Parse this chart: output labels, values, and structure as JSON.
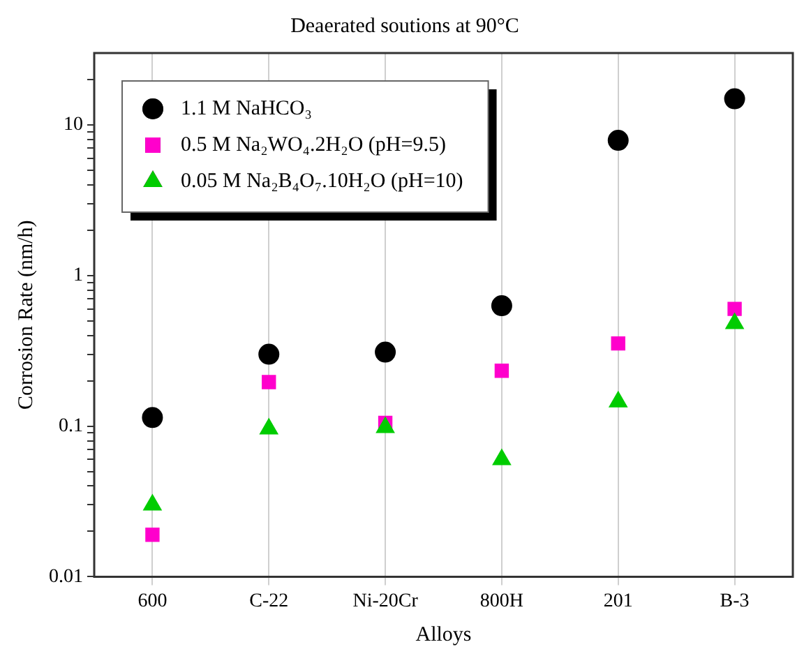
{
  "chart_data": {
    "type": "scatter",
    "title": "Deaerated soutions at 90°C",
    "xlabel": "Alloys",
    "ylabel": "Corrosion Rate (nm/h)",
    "categories": [
      "600",
      "C-22",
      "Ni-20Cr",
      "800H",
      "201",
      "B-3"
    ],
    "series": [
      {
        "name": "1.1 M NaHCO₃",
        "color": "#000000",
        "marker": "circle",
        "values": [
          0.114,
          0.3,
          0.31,
          0.63,
          7.9,
          14.9
        ]
      },
      {
        "name": "0.5 M Na₂WO₄.2H₂O (pH=9.5)",
        "color": "#ff00cc",
        "marker": "square",
        "values": [
          0.019,
          0.196,
          0.105,
          0.233,
          0.354,
          0.6
        ]
      },
      {
        "name": "0.05 M Na₂B₄O₇.10H₂O (pH=10)",
        "color": "#00cc00",
        "marker": "triangle",
        "values": [
          0.03,
          0.096,
          0.098,
          0.06,
          0.145,
          0.48
        ]
      }
    ],
    "log": "y",
    "ylim": [
      0.01,
      30
    ],
    "yticks": [
      0.01,
      {
        "value": 0.02,
        "label": null
      },
      {
        "value": 0.03,
        "label": null
      },
      {
        "value": 0.04,
        "label": null
      },
      {
        "value": 0.05,
        "label": null
      },
      {
        "value": 0.06,
        "label": null
      },
      {
        "value": 0.07,
        "label": null
      },
      {
        "value": 0.08,
        "label": null
      },
      {
        "value": 0.09,
        "label": null
      },
      0.1,
      {
        "value": 0.2,
        "label": null
      },
      {
        "value": 0.3,
        "label": null
      },
      {
        "value": 0.4,
        "label": null
      },
      {
        "value": 0.5,
        "label": null
      },
      {
        "value": 0.6,
        "label": null
      },
      {
        "value": 0.7,
        "label": null
      },
      {
        "value": 0.8,
        "label": null
      },
      {
        "value": 0.9,
        "label": null
      },
      1,
      {
        "value": 2,
        "label": null
      },
      {
        "value": 3,
        "label": null
      },
      {
        "value": 4,
        "label": null
      },
      {
        "value": 5,
        "label": null
      },
      {
        "value": 6,
        "label": null
      },
      {
        "value": 7,
        "label": null
      },
      {
        "value": 8,
        "label": null
      },
      {
        "value": 9,
        "label": null
      },
      10,
      {
        "value": 20,
        "label": null
      }
    ],
    "grid": "x",
    "legend": "top left"
  }
}
